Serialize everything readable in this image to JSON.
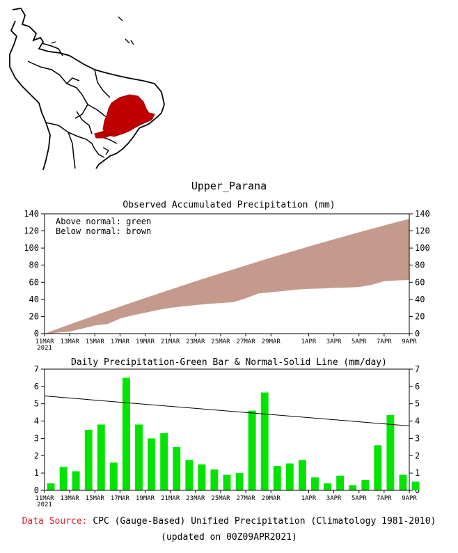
{
  "map": {
    "region_color": "#c00000"
  },
  "basin_title": "Upper_Parana",
  "source": {
    "label": "Data Source:",
    "text": "CPC (Gauge-Based) Unified Precipitation (Climatology 1981-2010)",
    "updated": "(updated on 00Z09APR2021)"
  },
  "chart_data": [
    {
      "type": "area",
      "title": "Observed Accumulated Precipitation (mm)",
      "legend": [
        "Above normal: green",
        "Below normal: brown"
      ],
      "colors": {
        "above": "#00c000",
        "below": "#c49a8c"
      },
      "ylim": [
        0,
        140
      ],
      "yticks": [
        0,
        20,
        40,
        60,
        80,
        100,
        120,
        140
      ],
      "xlim": [
        0,
        29
      ],
      "x_tick_positions": [
        0,
        2,
        4,
        6,
        8,
        10,
        12,
        14,
        16,
        18,
        21,
        23,
        25,
        27,
        29
      ],
      "x_tick_labels": [
        "11MAR",
        "13MAR",
        "15MAR",
        "17MAR",
        "19MAR",
        "21MAR",
        "23MAR",
        "25MAR",
        "27MAR",
        "29MAR",
        "1APR",
        "3APR",
        "5APR",
        "7APR",
        "9APR"
      ],
      "year_label": "2021",
      "series": [
        {
          "name": "observed",
          "values": [
            0,
            1.5,
            2.8,
            6.3,
            10,
            11.6,
            18,
            21.8,
            24.8,
            28,
            30.5,
            32.2,
            33.7,
            35.2,
            36.1,
            37.1,
            41.7,
            47.3,
            48.7,
            50.2,
            51.9,
            52.7,
            53.1,
            53.9,
            54.2,
            54.8,
            57.4,
            61.7,
            62.6,
            63.1
          ]
        },
        {
          "name": "normal",
          "values": [
            0,
            5.4,
            10.7,
            16,
            21.2,
            26.4,
            31.5,
            36.6,
            41.6,
            46.5,
            51.4,
            56.3,
            61.1,
            65.8,
            70.5,
            75.1,
            79.7,
            84.2,
            88.7,
            93.1,
            97.4,
            101.7,
            106,
            110.2,
            114.3,
            118.4,
            122.4,
            126.4,
            130.3,
            134
          ]
        }
      ]
    },
    {
      "type": "bar",
      "title": "Daily Precipitation-Green Bar & Normal-Solid Line (mm/day)",
      "colors": {
        "bar": "#00e400",
        "line": "#000000"
      },
      "ylim": [
        0,
        7
      ],
      "yticks": [
        0,
        1,
        2,
        3,
        4,
        5,
        6,
        7
      ],
      "xlim": [
        0,
        29
      ],
      "x_tick_positions": [
        0,
        2,
        4,
        6,
        8,
        10,
        12,
        14,
        16,
        18,
        21,
        23,
        25,
        27,
        29
      ],
      "x_tick_labels": [
        "11MAR",
        "13MAR",
        "15MAR",
        "17MAR",
        "19MAR",
        "21MAR",
        "23MAR",
        "25MAR",
        "27MAR",
        "29MAR",
        "1APR",
        "3APR",
        "5APR",
        "7APR",
        "9APR"
      ],
      "year_label": "2021",
      "bars": [
        0.4,
        1.35,
        1.1,
        3.5,
        3.8,
        1.6,
        6.5,
        3.8,
        3.0,
        3.3,
        2.5,
        1.75,
        1.5,
        1.2,
        0.9,
        1.0,
        4.6,
        5.65,
        1.4,
        1.55,
        1.75,
        0.75,
        0.4,
        0.85,
        0.3,
        0.6,
        2.6,
        4.35,
        0.9,
        0.5
      ],
      "normal_line": {
        "start": 5.45,
        "end": 3.72
      }
    }
  ]
}
